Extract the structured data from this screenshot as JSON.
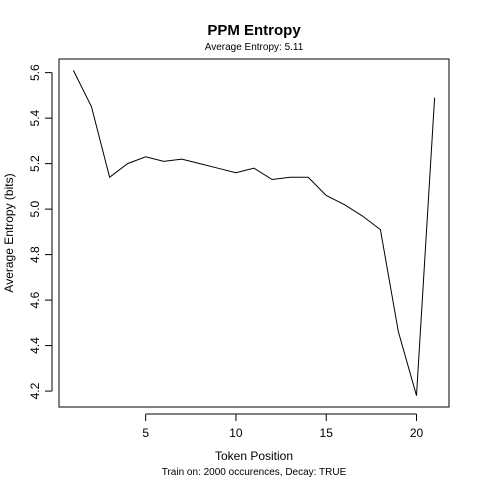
{
  "chart_data": {
    "type": "line",
    "title": "PPM Entropy",
    "subtitle": "Average Entropy: 5.11",
    "xlabel": "Token Position",
    "ylabel": "Average Entropy (bits)",
    "footnote": "Train on: 2000 occurences, Decay: TRUE",
    "xlim": [
      0.2,
      21.8
    ],
    "ylim": [
      4.13,
      5.66
    ],
    "x_ticks": [
      5,
      10,
      15,
      20
    ],
    "y_ticks": [
      4.2,
      4.4,
      4.6,
      4.8,
      5.0,
      5.2,
      5.4,
      5.6
    ],
    "grid": false,
    "series": [
      {
        "x": [
          1,
          2,
          3,
          4,
          5,
          6,
          7,
          8,
          9,
          10,
          11,
          12,
          13,
          14,
          15,
          16,
          17,
          18,
          19,
          20,
          21
        ],
        "values": [
          5.61,
          5.45,
          5.14,
          5.2,
          5.23,
          5.21,
          5.22,
          5.2,
          5.18,
          5.16,
          5.18,
          5.13,
          5.14,
          5.14,
          5.06,
          5.02,
          4.97,
          4.91,
          4.46,
          4.18,
          5.49
        ]
      }
    ]
  }
}
